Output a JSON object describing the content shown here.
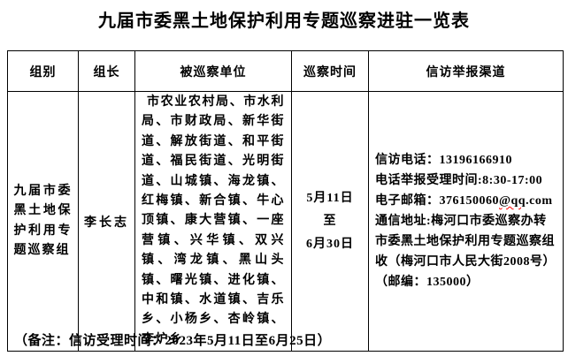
{
  "title": "九届市委黑土地保护利用专题巡察进驻一览表",
  "colors": {
    "text": "#000000",
    "background": "#ffffff",
    "table_border": "#000000",
    "spellcheck_underline": "#ff0000"
  },
  "table": {
    "headers": {
      "group": "组别",
      "leader": "组长",
      "units": "被巡察单位",
      "time": "巡察时间",
      "channels": "信访举报渠道"
    },
    "row": {
      "group_name": "九届市委黑土地保护利用专题巡察组",
      "leader_name": "李长志",
      "inspected_units": "市农业农村局、市水利局、市财政局、新华街道、解放街道、和平街道、福民街道、光明街道、山城镇、海龙镇、红梅镇、新合镇、牛心顶镇、康大营镇、一座营镇、兴华镇、双兴镇、湾龙镇、黑山头镇、曙光镇、进化镇、中和镇、水道镇、吉乐乡、小杨乡、杏岭镇、李炉乡",
      "time": {
        "start": "5月11日",
        "connector": "至",
        "end": "6月30日"
      },
      "channels": {
        "phone": "信访电话：13196166910",
        "phone_hours": "电话举报受理时间:8:30-17:00",
        "email_label": "电子邮箱：",
        "email_user": "376150060",
        "email_wavy": "@qq",
        "email_tld": ".com",
        "address": "通信地址:梅河口市委巡察办转市委黑土地保护利用专题巡察组收（梅河口市人民大街2008号）（邮编：135000）"
      }
    }
  },
  "footnote": "（备注：信访受理时间：2023年5月11日至6月25日）"
}
